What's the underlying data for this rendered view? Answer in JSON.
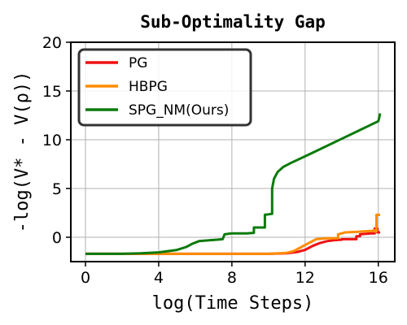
{
  "chart_data": {
    "type": "line",
    "title": "Sub-Optimality Gap",
    "xlabel": "log(Time Steps)",
    "ylabel": "-log(V* - V(ρ))",
    "xlim": [
      -0.8,
      16.9
    ],
    "ylim": [
      -2.5,
      20
    ],
    "xticks": [
      0,
      4,
      8,
      12,
      16
    ],
    "yticks": [
      0,
      5,
      10,
      15,
      20
    ],
    "grid": true,
    "legend_position": "top-left",
    "series": [
      {
        "name": "PG",
        "color": "#ee1111",
        "points": [
          [
            0,
            -1.7
          ],
          [
            4,
            -1.7
          ],
          [
            8,
            -1.7
          ],
          [
            10,
            -1.7
          ],
          [
            11,
            -1.65
          ],
          [
            11.6,
            -1.5
          ],
          [
            12,
            -1.3
          ],
          [
            12.4,
            -0.9
          ],
          [
            12.8,
            -0.6
          ],
          [
            13.2,
            -0.4
          ],
          [
            13.6,
            -0.3
          ],
          [
            14,
            -0.25
          ],
          [
            14,
            -0.2
          ],
          [
            14.8,
            -0.2
          ],
          [
            14.8,
            0.1
          ],
          [
            15,
            0.1
          ],
          [
            15,
            0.3
          ],
          [
            15.6,
            0.4
          ],
          [
            15.8,
            0.4
          ],
          [
            15.8,
            0.9
          ],
          [
            15.95,
            0.9
          ],
          [
            15.95,
            0.5
          ],
          [
            16.1,
            0.5
          ]
        ]
      },
      {
        "name": "HBPG",
        "color": "#ff8c00",
        "points": [
          [
            0,
            -1.7
          ],
          [
            4,
            -1.7
          ],
          [
            8,
            -1.7
          ],
          [
            10,
            -1.7
          ],
          [
            11,
            -1.6
          ],
          [
            11.4,
            -1.4
          ],
          [
            11.8,
            -1.0
          ],
          [
            12.2,
            -0.6
          ],
          [
            12.6,
            -0.2
          ],
          [
            13.2,
            -0.1
          ],
          [
            13.6,
            -0.1
          ],
          [
            13.8,
            -0.1
          ],
          [
            13.8,
            0.3
          ],
          [
            14.2,
            0.5
          ],
          [
            14.8,
            0.55
          ],
          [
            15.2,
            0.6
          ],
          [
            15.6,
            0.65
          ],
          [
            15.8,
            0.7
          ],
          [
            15.8,
            0.6
          ],
          [
            15.9,
            0.6
          ],
          [
            15.9,
            2.3
          ],
          [
            16.1,
            2.3
          ]
        ]
      },
      {
        "name": "SPG_NM(Ours)",
        "color": "#0b7a0b",
        "points": [
          [
            0,
            -1.7
          ],
          [
            2,
            -1.7
          ],
          [
            3,
            -1.65
          ],
          [
            4,
            -1.55
          ],
          [
            5,
            -1.3
          ],
          [
            5.5,
            -1.0
          ],
          [
            5.8,
            -0.7
          ],
          [
            6.2,
            -0.4
          ],
          [
            6.8,
            -0.3
          ],
          [
            7.2,
            -0.25
          ],
          [
            7.5,
            -0.2
          ],
          [
            7.6,
            0.3
          ],
          [
            8,
            0.4
          ],
          [
            8.8,
            0.4
          ],
          [
            9.2,
            0.45
          ],
          [
            9.2,
            1.0
          ],
          [
            9.4,
            1.0
          ],
          [
            9.8,
            1.0
          ],
          [
            9.8,
            2.3
          ],
          [
            10.2,
            2.4
          ],
          [
            10.2,
            5.0
          ],
          [
            10.3,
            6.0
          ],
          [
            10.5,
            6.7
          ],
          [
            10.8,
            7.2
          ],
          [
            11.2,
            7.6
          ],
          [
            12,
            8.3
          ],
          [
            13,
            9.2
          ],
          [
            14,
            10.1
          ],
          [
            15,
            11.0
          ],
          [
            16,
            11.9
          ],
          [
            16.1,
            12.7
          ]
        ]
      }
    ]
  }
}
